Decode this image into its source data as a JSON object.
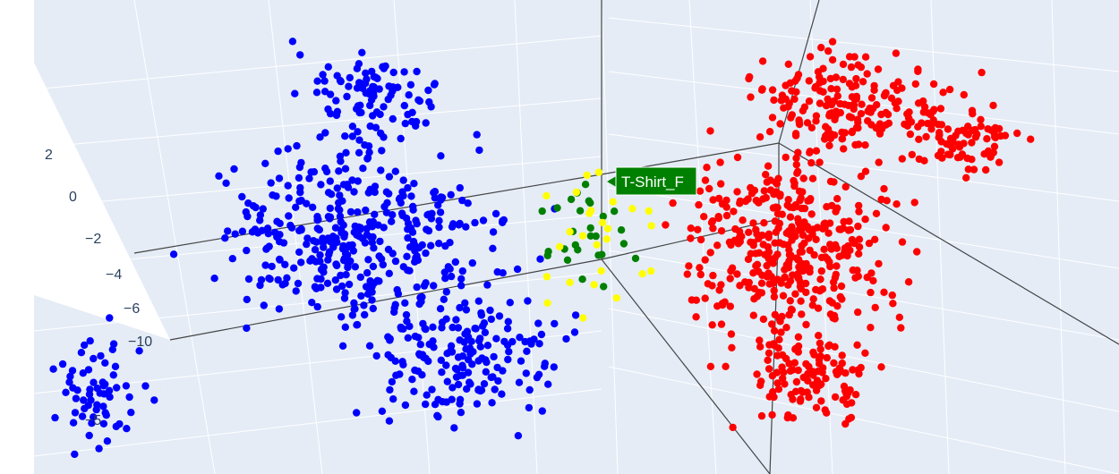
{
  "chart_data": {
    "type": "scatter",
    "mode": "3d",
    "title": "",
    "background_color": "#e5ecf6",
    "gridline_color": "#ffffff",
    "axis_line_color": "#444444",
    "z_axis_ticks": [
      "2",
      "0",
      "−2",
      "−4",
      "−6",
      "−10"
    ],
    "x_axis_ticks": [
      "−5"
    ],
    "series_colors": [
      "#0000ff",
      "#ff0000",
      "#008000",
      "#ffff00"
    ],
    "hover_label": {
      "text": "T-Shirt_F",
      "bg": "#008000",
      "fg": "#ffffff"
    },
    "series": [
      {
        "color": "#0000ff",
        "count": 720,
        "cluster": "left"
      },
      {
        "color": "#ff0000",
        "count": 760,
        "cluster": "right"
      },
      {
        "color": "#008000",
        "count": 28,
        "cluster": "center"
      },
      {
        "color": "#ffff00",
        "count": 26,
        "cluster": "center"
      }
    ]
  }
}
